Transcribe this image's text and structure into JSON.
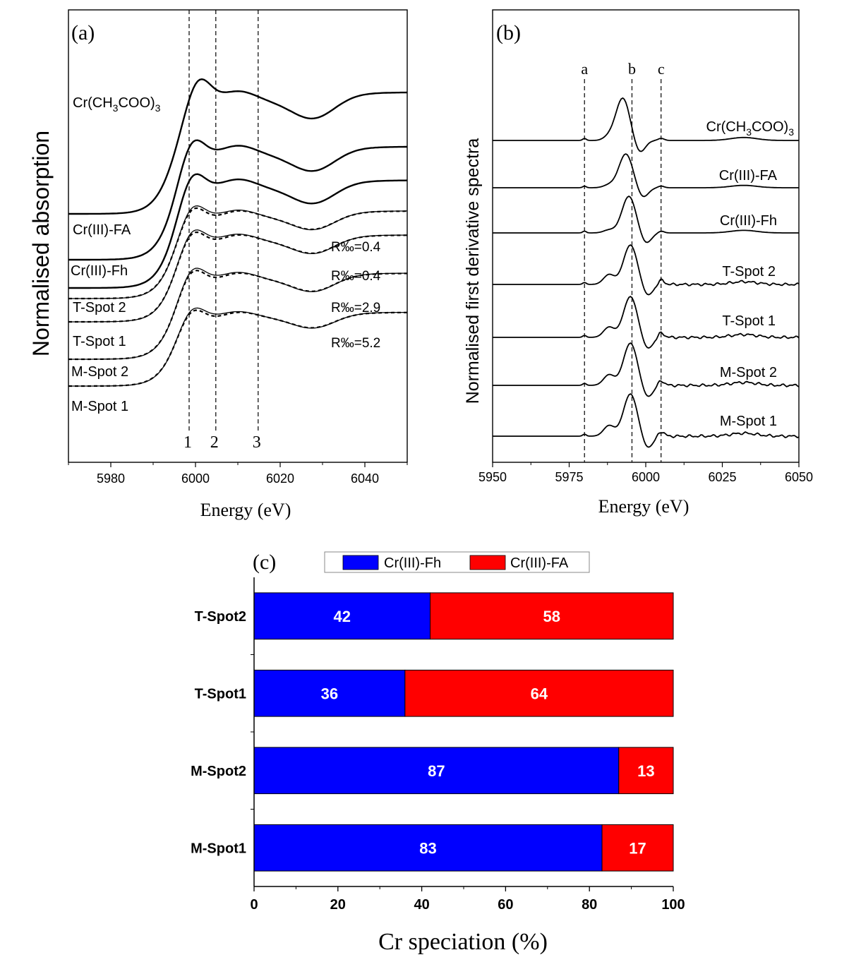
{
  "panels": [
    {
      "id": "a",
      "label": "(a)",
      "type": "line",
      "xlabel": "Energy (eV)",
      "ylabel": "Normalised absorption",
      "xlim": [
        5970,
        6050
      ],
      "xticks": [
        5980,
        6000,
        6020,
        6040
      ],
      "markers": [
        {
          "label": "1",
          "x": 5998.5
        },
        {
          "label": "2",
          "x": 6004.8
        },
        {
          "label": "3",
          "x": 6014.8
        }
      ],
      "series": [
        {
          "name": "Cr(CH3COO)3",
          "display": {
            "pre": "Cr(CH",
            "sub1": "3",
            "mid": "COO)",
            "sub2": "3"
          },
          "fit": false
        },
        {
          "name": "Cr(III)-FA",
          "fit": false
        },
        {
          "name": "Cr(III)-Fh",
          "fit": false
        },
        {
          "name": "T-Spot 2",
          "fit": true,
          "r_factor": "R‰=0.4"
        },
        {
          "name": "T-Spot 1",
          "fit": true,
          "r_factor": "R‰=0.4"
        },
        {
          "name": "M-Spot 2",
          "fit": true,
          "r_factor": "R‰=2.9"
        },
        {
          "name": "M-Spot 1",
          "fit": true,
          "r_factor": "R‰=5.2"
        }
      ]
    },
    {
      "id": "b",
      "label": "(b)",
      "type": "line",
      "xlabel": "Energy (eV)",
      "ylabel": "Normalised first derivative spectra",
      "xlim": [
        5950,
        6050
      ],
      "xticks": [
        5950,
        5975,
        6000,
        6025,
        6050
      ],
      "markers": [
        {
          "label": "a",
          "x": 5980
        },
        {
          "label": "b",
          "x": 5995.5
        },
        {
          "label": "c",
          "x": 6005
        }
      ],
      "series": [
        {
          "name": "Cr(CH3COO)3",
          "display": {
            "pre": "Cr(CH",
            "sub1": "3",
            "mid": "COO)",
            "sub2": "3"
          }
        },
        {
          "name": "Cr(III)-FA"
        },
        {
          "name": "Cr(III)-Fh"
        },
        {
          "name": "T-Spot 2"
        },
        {
          "name": "T-Spot 1"
        },
        {
          "name": "M-Spot 2"
        },
        {
          "name": "M-Spot 1"
        }
      ]
    }
  ],
  "chart_data": {
    "type": "bar",
    "orientation": "horizontal",
    "stacked": true,
    "label": "(c)",
    "xlabel": "Cr speciation (%)",
    "xlim": [
      0,
      100
    ],
    "xticks": [
      0,
      20,
      40,
      60,
      80,
      100
    ],
    "categories": [
      "T-Spot2",
      "T-Spot1",
      "M-Spot2",
      "M-Spot1"
    ],
    "series": [
      {
        "name": "Cr(III)-Fh",
        "color": "#0000ff",
        "values": [
          42,
          36,
          87,
          83
        ]
      },
      {
        "name": "Cr(III)-FA",
        "color": "#ff0000",
        "values": [
          58,
          64,
          13,
          17
        ]
      }
    ],
    "legend_position": "top"
  }
}
